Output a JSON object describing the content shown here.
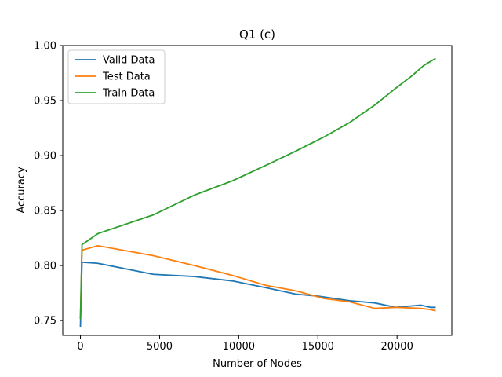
{
  "chart_data": {
    "type": "line",
    "title": "Q1 (c)",
    "xlabel": "Number of Nodes",
    "ylabel": "Accuracy",
    "xlim": [
      -1117,
      23460
    ],
    "ylim": [
      0.7365,
      1.0
    ],
    "xticks": [
      0,
      5000,
      10000,
      15000,
      20000
    ],
    "xtick_labels": [
      "0",
      "5000",
      "10000",
      "15000",
      "20000"
    ],
    "yticks": [
      0.75,
      0.8,
      0.85,
      0.9,
      0.95,
      1.0
    ],
    "ytick_labels": [
      "0.75",
      "0.80",
      "0.85",
      "0.90",
      "0.95",
      "1.00"
    ],
    "legend_position": "top-left",
    "grid": false,
    "series": [
      {
        "name": "Valid Data",
        "color": "#1f77b4",
        "x": [
          0,
          100,
          1100,
          4600,
          7200,
          9600,
          12000,
          13600,
          15100,
          17000,
          18600,
          19900,
          21500,
          22100,
          22400
        ],
        "y": [
          0.745,
          0.803,
          0.802,
          0.792,
          0.79,
          0.786,
          0.779,
          0.774,
          0.772,
          0.768,
          0.766,
          0.762,
          0.764,
          0.762,
          0.762
        ]
      },
      {
        "name": "Test Data",
        "color": "#ff7f0e",
        "x": [
          0,
          100,
          1100,
          4600,
          7200,
          9600,
          11700,
          13600,
          15400,
          17000,
          18600,
          19900,
          21500,
          22100,
          22400
        ],
        "y": [
          0.752,
          0.814,
          0.818,
          0.809,
          0.8,
          0.791,
          0.782,
          0.777,
          0.77,
          0.767,
          0.761,
          0.762,
          0.761,
          0.76,
          0.759
        ]
      },
      {
        "name": "Train Data",
        "color": "#2ca02c",
        "x": [
          0,
          100,
          1100,
          4600,
          7200,
          9600,
          12000,
          13600,
          15400,
          17000,
          18600,
          19900,
          20900,
          21700,
          22400
        ],
        "y": [
          0.752,
          0.819,
          0.829,
          0.846,
          0.864,
          0.877,
          0.893,
          0.904,
          0.917,
          0.93,
          0.946,
          0.961,
          0.972,
          0.982,
          0.988
        ]
      }
    ]
  }
}
